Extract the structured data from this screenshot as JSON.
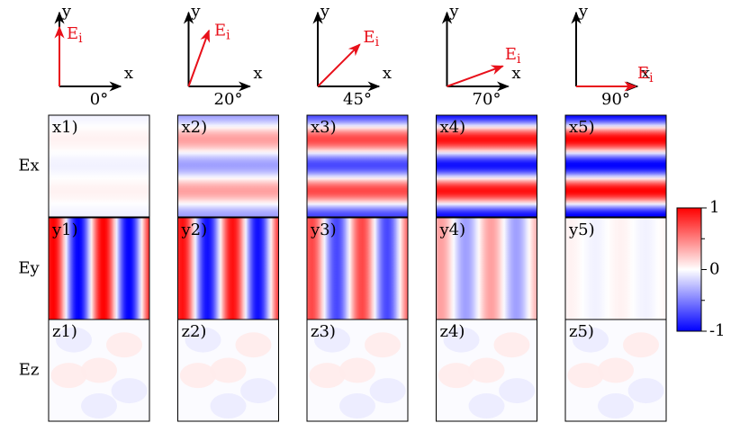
{
  "rows": [
    "Ex",
    "Ey",
    "Ez"
  ],
  "axis_labels": {
    "x": "x",
    "y": "y",
    "field": "E",
    "field_sub": "i"
  },
  "columns": [
    {
      "angle": 0,
      "label": "0°",
      "panels": [
        "x1)",
        "y1)",
        "z1)"
      ]
    },
    {
      "angle": 20,
      "label": "20°",
      "panels": [
        "x2)",
        "y2)",
        "z2)"
      ]
    },
    {
      "angle": 45,
      "label": "45°",
      "panels": [
        "x3)",
        "y3)",
        "z3)"
      ]
    },
    {
      "angle": 70,
      "label": "70°",
      "panels": [
        "x4)",
        "y4)",
        "z4)"
      ]
    },
    {
      "angle": 90,
      "label": "90°",
      "panels": [
        "x5)",
        "y5)",
        "z5)"
      ]
    }
  ],
  "colorbar": {
    "lim": [
      -1,
      1
    ],
    "ticks": [
      1,
      0,
      -1
    ],
    "minor_ticks": [
      0.5,
      -0.5
    ]
  }
}
